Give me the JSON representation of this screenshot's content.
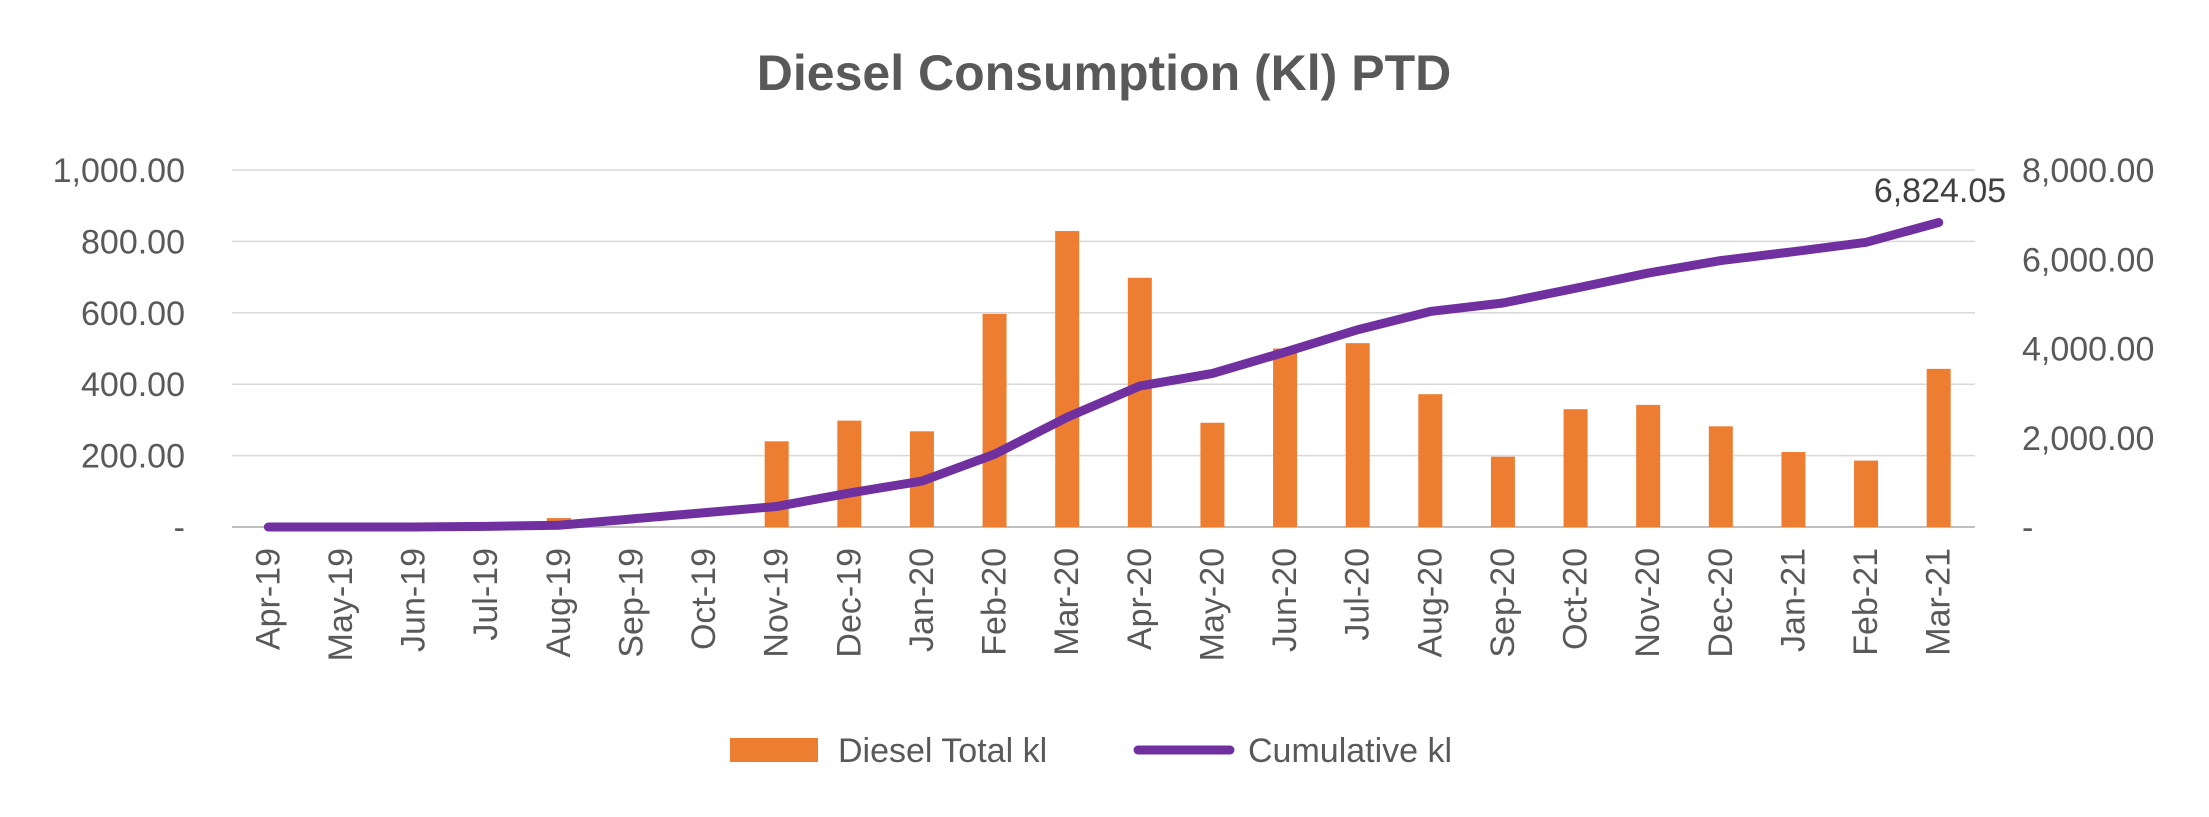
{
  "chart_data": {
    "type": "bar",
    "title": "Diesel Consumption (Kl) PTD",
    "categories": [
      "Apr-19",
      "May-19",
      "Jun-19",
      "Jul-19",
      "Aug-19",
      "Sep-19",
      "Oct-19",
      "Nov-19",
      "Dec-19",
      "Jan-20",
      "Feb-20",
      "Mar-20",
      "Apr-20",
      "May-20",
      "Jun-20",
      "Jul-20",
      "Aug-20",
      "Sep-20",
      "Oct-20",
      "Nov-20",
      "Dec-20",
      "Jan-21",
      "Feb-21",
      "Mar-21"
    ],
    "series": [
      {
        "name": "Diesel Total kl",
        "type": "bar",
        "axis": "left",
        "color": "#ED7D31",
        "values": [
          0,
          0,
          0,
          0,
          25,
          0,
          0,
          240,
          298,
          268,
          597,
          829,
          698,
          292,
          500,
          515,
          372,
          197,
          330,
          342,
          282,
          210,
          186,
          443
        ]
      },
      {
        "name": "Cumulative kl",
        "type": "line",
        "axis": "right",
        "color": "#7030A0",
        "values": [
          0,
          0,
          0,
          15,
          40,
          180,
          320,
          460,
          760,
          1030,
          1630,
          2460,
          3160,
          3440,
          3920,
          4420,
          4830,
          5020,
          5350,
          5690,
          5970,
          6170,
          6380,
          6824.05
        ]
      }
    ],
    "y_left": {
      "min": 0,
      "max": 1000,
      "ticks": [
        "-",
        "200.00",
        "400.00",
        "600.00",
        "800.00",
        "1,000.00"
      ]
    },
    "y_right": {
      "min": 0,
      "max": 8000,
      "ticks": [
        "-",
        "2,000.00",
        "4,000.00",
        "6,000.00",
        "8,000.00"
      ]
    },
    "annotation": "6,824.05",
    "grid": true,
    "legend_position": "bottom"
  }
}
